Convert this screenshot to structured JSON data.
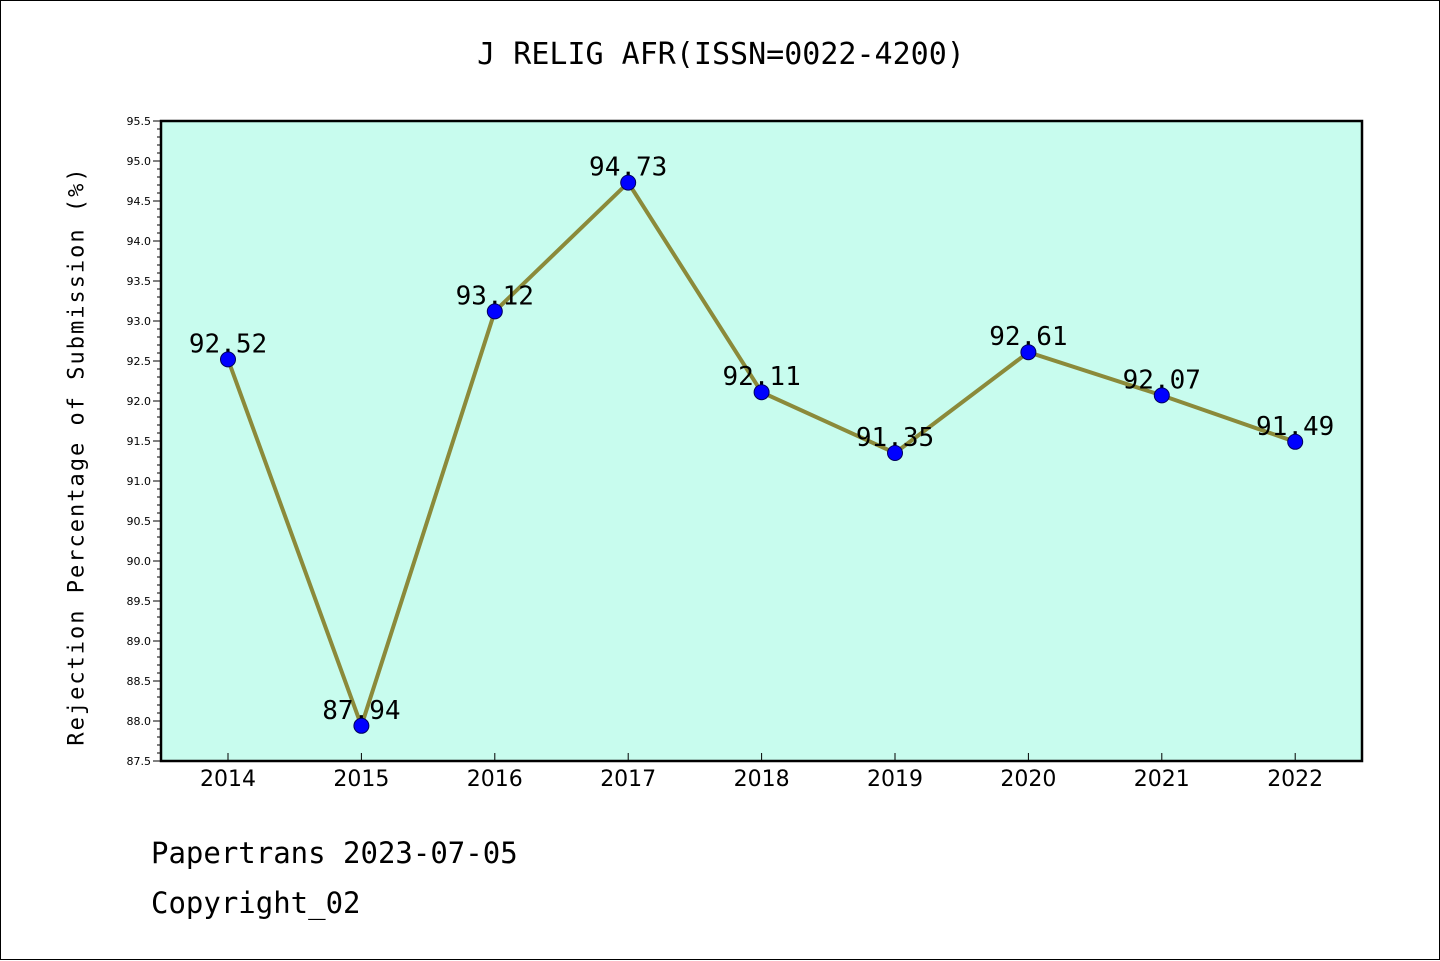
{
  "chart_data": {
    "type": "line",
    "title": "J RELIG AFR(ISSN=0022-4200)",
    "xlabel": "",
    "ylabel": "Rejection Percentage of Submission (%)",
    "categories": [
      "2014",
      "2015",
      "2016",
      "2017",
      "2018",
      "2019",
      "2020",
      "2021",
      "2022"
    ],
    "values": [
      92.52,
      87.94,
      93.12,
      94.73,
      92.11,
      91.35,
      92.61,
      92.07,
      91.49
    ],
    "value_labels": [
      "92.52",
      "87.94",
      "93.12",
      "94.73",
      "92.11",
      "91.35",
      "92.61",
      "92.07",
      "91.49"
    ],
    "ylim": [
      87.5,
      95.5
    ],
    "yticks": [
      "87.5",
      "88.0",
      "88.5",
      "89.0",
      "89.5",
      "90.0",
      "90.5",
      "91.0",
      "91.5",
      "92.0",
      "92.5",
      "93.0",
      "93.5",
      "94.0",
      "94.5",
      "95.0",
      "95.5"
    ],
    "grid": false,
    "legend": "none",
    "colors": {
      "plot_background": "#c8fcee",
      "line": "#8b8a3a",
      "marker": "#0000ff"
    }
  },
  "footer": {
    "date": "Papertrans 2023-07-05",
    "copyright": "Copyright_02"
  }
}
